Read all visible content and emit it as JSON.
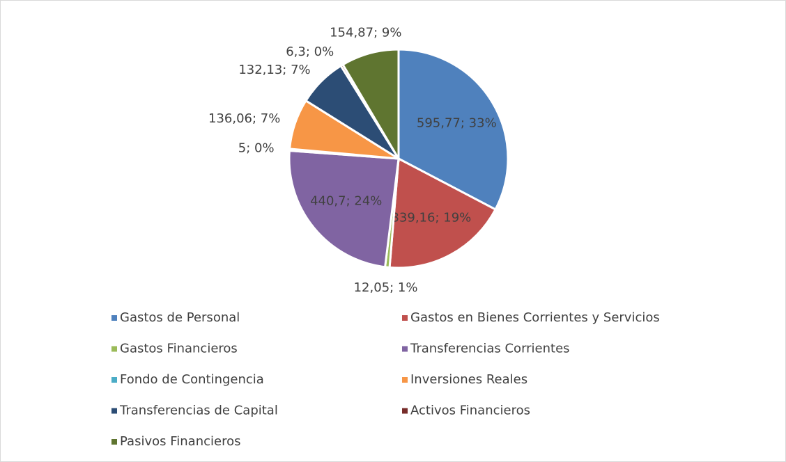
{
  "chart_data": {
    "type": "pie",
    "categories": [
      "Gastos de Personal",
      "Gastos en Bienes Corrientes y Servicios",
      "Gastos Financieros",
      "Transferencias Corrientes",
      "Fondo de Contingencia",
      "Inversiones Reales",
      "Transferencias de Capital",
      "Activos Financieros",
      "Pasivos Financieros"
    ],
    "values": [
      595.77,
      339.16,
      12.05,
      440.7,
      5,
      136.06,
      132.13,
      6.3,
      154.87
    ],
    "value_labels": [
      "595,77; 33%",
      "339,16; 19%",
      "12,05; 1%",
      "440,7; 24%",
      "5; 0%",
      "136,06; 7%",
      "132,13; 7%",
      "6,3; 0%",
      "154,87; 9%"
    ],
    "colors": [
      "#4f81bd",
      "#c0504d",
      "#9bbb59",
      "#8064a2",
      "#4bacc6",
      "#f79646",
      "#2c4d75",
      "#772c2a",
      "#5f7530"
    ],
    "legend": "bottom"
  }
}
